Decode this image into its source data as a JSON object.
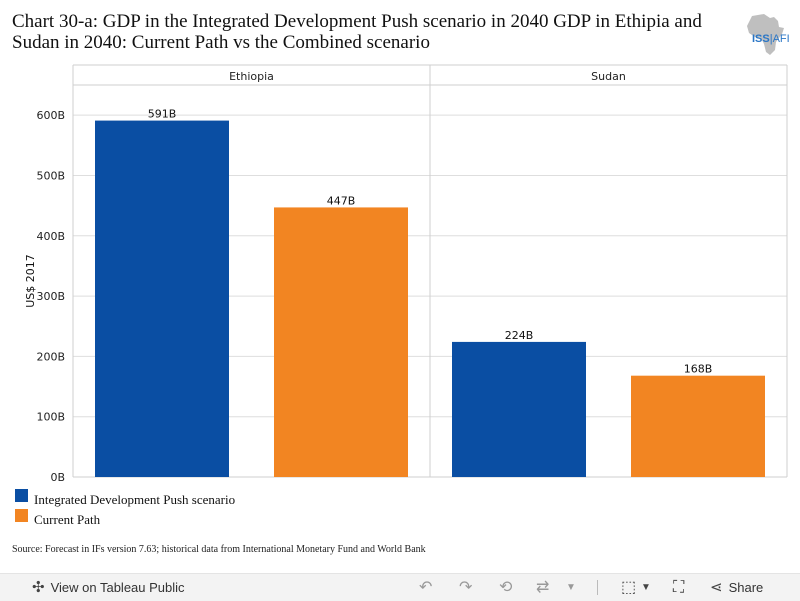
{
  "title": "Chart 30-a: GDP in the Integrated Development Push scenario in 2040 GDP in Ethipia and Sudan in 2040: Current Path vs the Combined scenario",
  "logo": {
    "text_main": "ISS",
    "text_sub": "AFI"
  },
  "chart_data": {
    "type": "bar",
    "title": "Chart 30-a: GDP in the Integrated Development Push scenario in 2040 GDP in Ethipia and Sudan in 2040: Current Path vs the Combined scenario",
    "ylabel": "US$ 2017",
    "ylim": [
      0,
      650
    ],
    "yticks": [
      0,
      100,
      200,
      300,
      400,
      500,
      600
    ],
    "ytick_labels": [
      "0B",
      "100B",
      "200B",
      "300B",
      "400B",
      "500B",
      "600B"
    ],
    "grid": true,
    "legend_position": "bottom-left",
    "panels": [
      "Ethiopia",
      "Sudan"
    ],
    "series": [
      {
        "name": "Integrated Development Push scenario",
        "color": "#0a4ea3",
        "values": [
          591,
          224
        ],
        "labels": [
          "591B",
          "224B"
        ]
      },
      {
        "name": "Current Path",
        "color": "#f28522",
        "values": [
          447,
          168
        ],
        "labels": [
          "447B",
          "168B"
        ]
      }
    ]
  },
  "source": "Source: Forecast in IFs version 7.63; historical data from International Monetary Fund and World Bank",
  "toolbar": {
    "view_label": "View on Tableau Public",
    "share_label": "Share",
    "undo_icon": "undo-icon",
    "redo_icon": "redo-icon",
    "revert_icon": "revert-icon",
    "refresh_icon": "refresh-icon",
    "download_icon": "download-icon",
    "fullscreen_icon": "fullscreen-icon",
    "share_icon": "share-icon"
  }
}
